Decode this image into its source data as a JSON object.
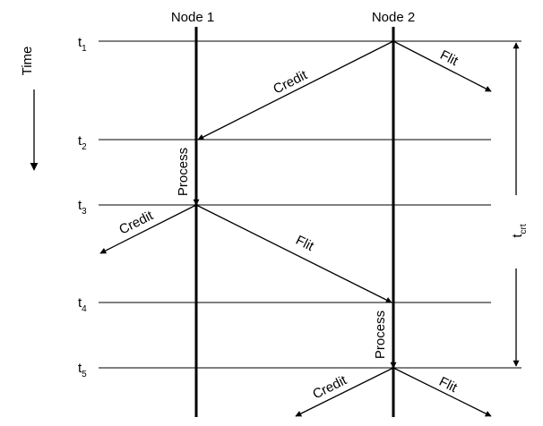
{
  "nodes": [
    {
      "id": "node-1",
      "label": "Node 1"
    },
    {
      "id": "node-2",
      "label": "Node 2"
    }
  ],
  "time_axis": {
    "label": "Time"
  },
  "time_marks": [
    {
      "base": "t",
      "sub": "1"
    },
    {
      "base": "t",
      "sub": "2"
    },
    {
      "base": "t",
      "sub": "3"
    },
    {
      "base": "t",
      "sub": "4"
    },
    {
      "base": "t",
      "sub": "5"
    }
  ],
  "messages": {
    "credit_label": "Credit",
    "flit_label": "Flit",
    "process_label": "Process"
  },
  "interval": {
    "base": "t",
    "sub": "crt"
  }
}
